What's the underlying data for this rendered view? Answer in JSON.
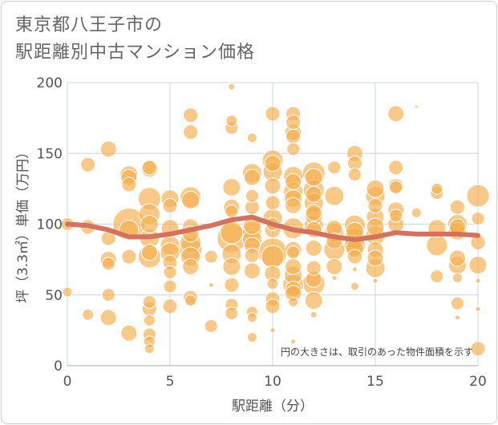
{
  "title_lines": [
    "東京都八王子市の",
    "駅距離別中古マンション価格"
  ],
  "note": "円の大きさは、取引のあった物件面積を示す",
  "colors": {
    "bubble": "#f4b04f",
    "trend": "#d2735f",
    "grid": "#c8d4e0",
    "axis": "#555555"
  },
  "chart_data": {
    "type": "scatter",
    "xlabel": "駅距離（分）",
    "ylabel": "坪（3.3㎡）単価（万円）",
    "xlim": [
      0,
      20
    ],
    "ylim": [
      0,
      200
    ],
    "xticks": [
      0,
      5,
      10,
      15,
      20
    ],
    "yticks": [
      0,
      50,
      100,
      150,
      200
    ],
    "grid": true,
    "points": [
      {
        "x": 0,
        "y": 100,
        "s": 8
      },
      {
        "x": 0,
        "y": 52,
        "s": 6
      },
      {
        "x": 1,
        "y": 142,
        "s": 9
      },
      {
        "x": 1,
        "y": 98,
        "s": 9
      },
      {
        "x": 1,
        "y": 36,
        "s": 7
      },
      {
        "x": 2,
        "y": 153,
        "s": 10
      },
      {
        "x": 2,
        "y": 90,
        "s": 9
      },
      {
        "x": 2,
        "y": 75,
        "s": 10
      },
      {
        "x": 2,
        "y": 72,
        "s": 8
      },
      {
        "x": 2,
        "y": 50,
        "s": 8
      },
      {
        "x": 2,
        "y": 34,
        "s": 10
      },
      {
        "x": 3,
        "y": 135,
        "s": 11
      },
      {
        "x": 3,
        "y": 133,
        "s": 10
      },
      {
        "x": 3,
        "y": 128,
        "s": 9
      },
      {
        "x": 3,
        "y": 100,
        "s": 20
      },
      {
        "x": 3,
        "y": 96,
        "s": 12
      },
      {
        "x": 3,
        "y": 77,
        "s": 9
      },
      {
        "x": 3,
        "y": 23,
        "s": 10
      },
      {
        "x": 4,
        "y": 140,
        "s": 9
      },
      {
        "x": 4,
        "y": 139,
        "s": 10
      },
      {
        "x": 4,
        "y": 118,
        "s": 14
      },
      {
        "x": 4,
        "y": 107,
        "s": 13
      },
      {
        "x": 4,
        "y": 100,
        "s": 11
      },
      {
        "x": 4,
        "y": 90,
        "s": 12
      },
      {
        "x": 4,
        "y": 80,
        "s": 10
      },
      {
        "x": 4,
        "y": 77,
        "s": 14
      },
      {
        "x": 4,
        "y": 45,
        "s": 8
      },
      {
        "x": 4,
        "y": 40,
        "s": 9
      },
      {
        "x": 4,
        "y": 32,
        "s": 7
      },
      {
        "x": 4,
        "y": 22,
        "s": 8
      },
      {
        "x": 4,
        "y": 17,
        "s": 7
      },
      {
        "x": 4,
        "y": 12,
        "s": 6
      },
      {
        "x": 5,
        "y": 118,
        "s": 11
      },
      {
        "x": 5,
        "y": 113,
        "s": 9
      },
      {
        "x": 5,
        "y": 97,
        "s": 11
      },
      {
        "x": 5,
        "y": 85,
        "s": 12
      },
      {
        "x": 5,
        "y": 80,
        "s": 12
      },
      {
        "x": 5,
        "y": 73,
        "s": 9
      },
      {
        "x": 5,
        "y": 66,
        "s": 8
      },
      {
        "x": 5,
        "y": 56,
        "s": 8
      },
      {
        "x": 5,
        "y": 42,
        "s": 9
      },
      {
        "x": 6,
        "y": 177,
        "s": 9
      },
      {
        "x": 6,
        "y": 165,
        "s": 9
      },
      {
        "x": 6,
        "y": 119,
        "s": 13
      },
      {
        "x": 6,
        "y": 117,
        "s": 11
      },
      {
        "x": 6,
        "y": 98,
        "s": 10
      },
      {
        "x": 6,
        "y": 93,
        "s": 10
      },
      {
        "x": 6,
        "y": 87,
        "s": 13
      },
      {
        "x": 6,
        "y": 82,
        "s": 14
      },
      {
        "x": 6,
        "y": 77,
        "s": 12
      },
      {
        "x": 6,
        "y": 70,
        "s": 10
      },
      {
        "x": 6,
        "y": 48,
        "s": 9
      },
      {
        "x": 6,
        "y": 46,
        "s": 7
      },
      {
        "x": 7,
        "y": 77,
        "s": 8
      },
      {
        "x": 7,
        "y": 57,
        "s": 3
      },
      {
        "x": 7,
        "y": 28,
        "s": 8
      },
      {
        "x": 8,
        "y": 197,
        "s": 4
      },
      {
        "x": 8,
        "y": 173,
        "s": 7
      },
      {
        "x": 8,
        "y": 168,
        "s": 8
      },
      {
        "x": 8,
        "y": 126,
        "s": 11
      },
      {
        "x": 8,
        "y": 112,
        "s": 10
      },
      {
        "x": 8,
        "y": 109,
        "s": 8
      },
      {
        "x": 8,
        "y": 94,
        "s": 14
      },
      {
        "x": 8,
        "y": 90,
        "s": 18
      },
      {
        "x": 8,
        "y": 79,
        "s": 12
      },
      {
        "x": 8,
        "y": 70,
        "s": 11
      },
      {
        "x": 8,
        "y": 57,
        "s": 9
      },
      {
        "x": 8,
        "y": 43,
        "s": 8
      },
      {
        "x": 8,
        "y": 37,
        "s": 8
      },
      {
        "x": 9,
        "y": 161,
        "s": 6
      },
      {
        "x": 9,
        "y": 136,
        "s": 12
      },
      {
        "x": 9,
        "y": 133,
        "s": 10
      },
      {
        "x": 9,
        "y": 120,
        "s": 8
      },
      {
        "x": 9,
        "y": 112,
        "s": 9
      },
      {
        "x": 9,
        "y": 99,
        "s": 11
      },
      {
        "x": 9,
        "y": 95,
        "s": 12
      },
      {
        "x": 9,
        "y": 89,
        "s": 12
      },
      {
        "x": 9,
        "y": 85,
        "s": 10
      },
      {
        "x": 9,
        "y": 78,
        "s": 9
      },
      {
        "x": 9,
        "y": 67,
        "s": 10
      },
      {
        "x": 9,
        "y": 38,
        "s": 7
      },
      {
        "x": 9,
        "y": 34,
        "s": 6
      },
      {
        "x": 9,
        "y": 20,
        "s": 6
      },
      {
        "x": 10,
        "y": 178,
        "s": 9
      },
      {
        "x": 10,
        "y": 145,
        "s": 13
      },
      {
        "x": 10,
        "y": 143,
        "s": 10
      },
      {
        "x": 10,
        "y": 137,
        "s": 12
      },
      {
        "x": 10,
        "y": 127,
        "s": 10
      },
      {
        "x": 10,
        "y": 115,
        "s": 9
      },
      {
        "x": 10,
        "y": 104,
        "s": 12
      },
      {
        "x": 10,
        "y": 100,
        "s": 8
      },
      {
        "x": 10,
        "y": 96,
        "s": 10
      },
      {
        "x": 10,
        "y": 80,
        "s": 18
      },
      {
        "x": 10,
        "y": 77,
        "s": 14
      },
      {
        "x": 10,
        "y": 65,
        "s": 10
      },
      {
        "x": 10,
        "y": 58,
        "s": 7
      },
      {
        "x": 10,
        "y": 47,
        "s": 9
      },
      {
        "x": 10,
        "y": 42,
        "s": 9
      },
      {
        "x": 10,
        "y": 25,
        "s": 3
      },
      {
        "x": 11,
        "y": 178,
        "s": 9
      },
      {
        "x": 11,
        "y": 172,
        "s": 9
      },
      {
        "x": 11,
        "y": 165,
        "s": 10
      },
      {
        "x": 11,
        "y": 162,
        "s": 9
      },
      {
        "x": 11,
        "y": 153,
        "s": 8
      },
      {
        "x": 11,
        "y": 134,
        "s": 12
      },
      {
        "x": 11,
        "y": 130,
        "s": 10
      },
      {
        "x": 11,
        "y": 123,
        "s": 12
      },
      {
        "x": 11,
        "y": 118,
        "s": 11
      },
      {
        "x": 11,
        "y": 113,
        "s": 10
      },
      {
        "x": 11,
        "y": 97,
        "s": 13
      },
      {
        "x": 11,
        "y": 82,
        "s": 10
      },
      {
        "x": 11,
        "y": 80,
        "s": 8
      },
      {
        "x": 11,
        "y": 70,
        "s": 10
      },
      {
        "x": 11,
        "y": 64,
        "s": 11
      },
      {
        "x": 11,
        "y": 57,
        "s": 13
      },
      {
        "x": 11,
        "y": 54,
        "s": 10
      },
      {
        "x": 11,
        "y": 51,
        "s": 10
      },
      {
        "x": 11,
        "y": 45,
        "s": 6
      },
      {
        "x": 11,
        "y": 17,
        "s": 3
      },
      {
        "x": 12,
        "y": 136,
        "s": 14
      },
      {
        "x": 12,
        "y": 133,
        "s": 11
      },
      {
        "x": 12,
        "y": 124,
        "s": 13
      },
      {
        "x": 12,
        "y": 121,
        "s": 10
      },
      {
        "x": 12,
        "y": 115,
        "s": 12
      },
      {
        "x": 12,
        "y": 108,
        "s": 10
      },
      {
        "x": 12,
        "y": 106,
        "s": 11
      },
      {
        "x": 12,
        "y": 99,
        "s": 12
      },
      {
        "x": 12,
        "y": 96,
        "s": 10
      },
      {
        "x": 12,
        "y": 83,
        "s": 10
      },
      {
        "x": 12,
        "y": 69,
        "s": 9
      },
      {
        "x": 12,
        "y": 61,
        "s": 10
      },
      {
        "x": 12,
        "y": 58,
        "s": 14
      },
      {
        "x": 12,
        "y": 46,
        "s": 11
      },
      {
        "x": 12,
        "y": 36,
        "s": 4
      },
      {
        "x": 13,
        "y": 140,
        "s": 8
      },
      {
        "x": 13,
        "y": 120,
        "s": 12
      },
      {
        "x": 13,
        "y": 97,
        "s": 10
      },
      {
        "x": 13,
        "y": 94,
        "s": 12
      },
      {
        "x": 13,
        "y": 88,
        "s": 10
      },
      {
        "x": 13,
        "y": 82,
        "s": 13
      },
      {
        "x": 13,
        "y": 70,
        "s": 10
      },
      {
        "x": 13,
        "y": 62,
        "s": 3
      },
      {
        "x": 14,
        "y": 150,
        "s": 10
      },
      {
        "x": 14,
        "y": 143,
        "s": 9
      },
      {
        "x": 14,
        "y": 135,
        "s": 8
      },
      {
        "x": 14,
        "y": 99,
        "s": 13
      },
      {
        "x": 14,
        "y": 95,
        "s": 11
      },
      {
        "x": 14,
        "y": 90,
        "s": 13
      },
      {
        "x": 14,
        "y": 85,
        "s": 13
      },
      {
        "x": 14,
        "y": 83,
        "s": 11
      },
      {
        "x": 14,
        "y": 77,
        "s": 9
      },
      {
        "x": 14,
        "y": 68,
        "s": 3
      },
      {
        "x": 14,
        "y": 56,
        "s": 5
      },
      {
        "x": 15,
        "y": 125,
        "s": 11
      },
      {
        "x": 15,
        "y": 120,
        "s": 12
      },
      {
        "x": 15,
        "y": 113,
        "s": 9
      },
      {
        "x": 15,
        "y": 105,
        "s": 11
      },
      {
        "x": 15,
        "y": 98,
        "s": 11
      },
      {
        "x": 15,
        "y": 92,
        "s": 12
      },
      {
        "x": 15,
        "y": 82,
        "s": 10
      },
      {
        "x": 15,
        "y": 76,
        "s": 10
      },
      {
        "x": 15,
        "y": 69,
        "s": 12
      },
      {
        "x": 15,
        "y": 60,
        "s": 3
      },
      {
        "x": 16,
        "y": 178,
        "s": 10
      },
      {
        "x": 16,
        "y": 140,
        "s": 9
      },
      {
        "x": 16,
        "y": 127,
        "s": 9
      },
      {
        "x": 16,
        "y": 126,
        "s": 8
      },
      {
        "x": 16,
        "y": 110,
        "s": 10
      },
      {
        "x": 16,
        "y": 106,
        "s": 8
      },
      {
        "x": 16,
        "y": 100,
        "s": 10
      },
      {
        "x": 17,
        "y": 183,
        "s": 2
      },
      {
        "x": 17,
        "y": 108,
        "s": 6
      },
      {
        "x": 18,
        "y": 125,
        "s": 7
      },
      {
        "x": 18,
        "y": 122,
        "s": 8
      },
      {
        "x": 18,
        "y": 97,
        "s": 11
      },
      {
        "x": 18,
        "y": 85,
        "s": 13
      },
      {
        "x": 18,
        "y": 63,
        "s": 8
      },
      {
        "x": 19,
        "y": 112,
        "s": 9
      },
      {
        "x": 19,
        "y": 100,
        "s": 12
      },
      {
        "x": 19,
        "y": 98,
        "s": 10
      },
      {
        "x": 19,
        "y": 95,
        "s": 11
      },
      {
        "x": 19,
        "y": 76,
        "s": 10
      },
      {
        "x": 19,
        "y": 71,
        "s": 11
      },
      {
        "x": 19,
        "y": 62,
        "s": 6
      },
      {
        "x": 19,
        "y": 44,
        "s": 8
      },
      {
        "x": 19,
        "y": 34,
        "s": 3
      },
      {
        "x": 20,
        "y": 120,
        "s": 14
      },
      {
        "x": 20,
        "y": 104,
        "s": 8
      },
      {
        "x": 20,
        "y": 87,
        "s": 9
      },
      {
        "x": 20,
        "y": 71,
        "s": 11
      },
      {
        "x": 20,
        "y": 60,
        "s": 3
      },
      {
        "x": 20,
        "y": 40,
        "s": 3
      },
      {
        "x": 20,
        "y": 12,
        "s": 9
      }
    ],
    "trend": {
      "x": [
        0,
        1,
        2,
        3,
        4,
        5,
        6,
        7,
        8,
        9,
        10,
        11,
        12,
        13,
        14,
        15,
        16,
        17,
        18,
        19,
        20
      ],
      "y": [
        100,
        99,
        96,
        91,
        91,
        93,
        96,
        99,
        103,
        105,
        100,
        96,
        94,
        91,
        89,
        91,
        94,
        93,
        93,
        93,
        92
      ]
    }
  }
}
